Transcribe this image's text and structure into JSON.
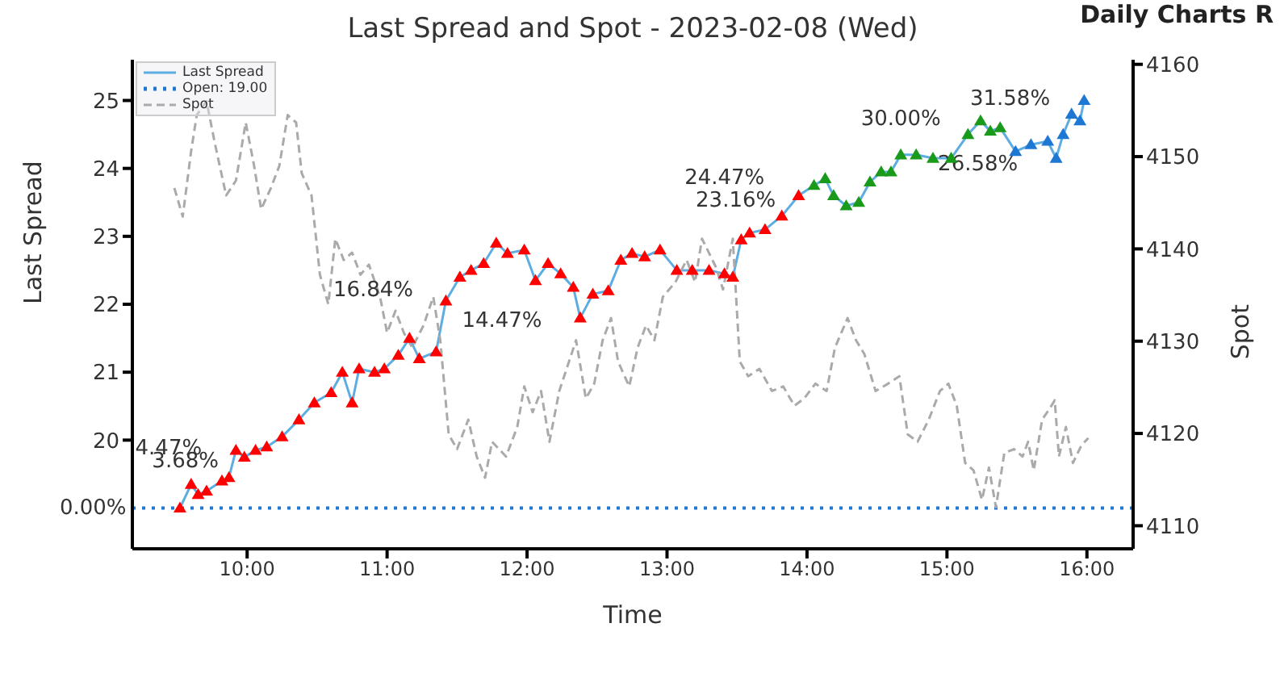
{
  "chart_data": {
    "type": "line",
    "title": "Last Spread and Spot - 2023-02-08 (Wed)",
    "xlabel": "Time",
    "ylabel": "Last Spread",
    "y2label": "Spot",
    "xlim": [
      9.18,
      16.33
    ],
    "xticks": [
      {
        "value": 10,
        "label": "10:00"
      },
      {
        "value": 11,
        "label": "11:00"
      },
      {
        "value": 12,
        "label": "12:00"
      },
      {
        "value": 13,
        "label": "13:00"
      },
      {
        "value": 14,
        "label": "14:00"
      },
      {
        "value": 15,
        "label": "15:00"
      },
      {
        "value": 16,
        "label": "16:00"
      }
    ],
    "ylim": [
      18.4,
      25.6
    ],
    "yticks": [
      20,
      21,
      22,
      23,
      24,
      25
    ],
    "y2lim": [
      4107.5,
      4160.5
    ],
    "y2ticks": [
      4110,
      4120,
      4130,
      4140,
      4150,
      4160
    ],
    "grid": false,
    "legend": "top left",
    "series": [
      {
        "name": "Last Spread",
        "color": "#5dade2",
        "marker": "triangle",
        "line_style": "solid",
        "x": [
          9.52,
          9.6,
          9.65,
          9.71,
          9.82,
          9.87,
          9.92,
          9.98,
          10.06,
          10.14,
          10.25,
          10.37,
          10.48,
          10.6,
          10.68,
          10.75,
          10.8,
          10.91,
          10.98,
          11.08,
          11.16,
          11.23,
          11.35,
          11.42,
          11.52,
          11.6,
          11.69,
          11.78,
          11.86,
          11.98,
          12.06,
          12.15,
          12.24,
          12.33,
          12.38,
          12.47,
          12.58,
          12.67,
          12.75,
          12.84,
          12.95,
          13.07,
          13.18,
          13.3,
          13.41,
          13.47,
          13.53,
          13.59,
          13.7,
          13.82,
          13.94,
          14.05,
          14.13,
          14.19,
          14.28,
          14.37,
          14.45,
          14.53,
          14.6,
          14.67,
          14.78,
          14.9,
          15.03,
          15.15,
          15.24,
          15.31,
          15.38,
          15.49,
          15.6,
          15.72,
          15.78,
          15.83,
          15.89,
          15.95,
          15.98
        ],
        "values": [
          19.0,
          19.35,
          19.2,
          19.25,
          19.4,
          19.45,
          19.85,
          19.75,
          19.85,
          19.9,
          20.05,
          20.3,
          20.55,
          20.7,
          21.0,
          20.55,
          21.05,
          21.0,
          21.05,
          21.25,
          21.5,
          21.2,
          21.3,
          22.05,
          22.4,
          22.5,
          22.6,
          22.9,
          22.75,
          22.8,
          22.35,
          22.6,
          22.45,
          22.25,
          21.8,
          22.15,
          22.2,
          22.65,
          22.75,
          22.7,
          22.8,
          22.5,
          22.5,
          22.5,
          22.45,
          22.4,
          22.95,
          23.05,
          23.1,
          23.3,
          23.6,
          23.75,
          23.85,
          23.6,
          23.45,
          23.5,
          23.8,
          23.95,
          23.95,
          24.2,
          24.2,
          24.15,
          24.15,
          24.5,
          24.7,
          24.55,
          24.6,
          24.25,
          24.35,
          24.4,
          24.15,
          24.5,
          24.8,
          24.7,
          25.0
        ],
        "colors": [
          "#ff0000",
          "#ff0000",
          "#ff0000",
          "#ff0000",
          "#ff0000",
          "#ff0000",
          "#ff0000",
          "#ff0000",
          "#ff0000",
          "#ff0000",
          "#ff0000",
          "#ff0000",
          "#ff0000",
          "#ff0000",
          "#ff0000",
          "#ff0000",
          "#ff0000",
          "#ff0000",
          "#ff0000",
          "#ff0000",
          "#ff0000",
          "#ff0000",
          "#ff0000",
          "#ff0000",
          "#ff0000",
          "#ff0000",
          "#ff0000",
          "#ff0000",
          "#ff0000",
          "#ff0000",
          "#ff0000",
          "#ff0000",
          "#ff0000",
          "#ff0000",
          "#ff0000",
          "#ff0000",
          "#ff0000",
          "#ff0000",
          "#ff0000",
          "#ff0000",
          "#ff0000",
          "#ff0000",
          "#ff0000",
          "#ff0000",
          "#ff0000",
          "#ff0000",
          "#ff0000",
          "#ff0000",
          "#ff0000",
          "#ff0000",
          "#ff0000",
          "#1a9a1a",
          "#1a9a1a",
          "#1a9a1a",
          "#1a9a1a",
          "#1a9a1a",
          "#1a9a1a",
          "#1a9a1a",
          "#1a9a1a",
          "#1a9a1a",
          "#1a9a1a",
          "#1a9a1a",
          "#1a9a1a",
          "#1a9a1a",
          "#1a9a1a",
          "#1a9a1a",
          "#1a9a1a",
          "#1f77d4",
          "#1f77d4",
          "#1f77d4",
          "#1f77d4",
          "#1f77d4",
          "#1f77d4",
          "#1f77d4",
          "#1f77d4"
        ]
      },
      {
        "name": "Spot",
        "axis": "y2",
        "color": "#aaaaaa",
        "marker": "none",
        "line_style": "dashed",
        "x": [
          9.48,
          9.54,
          9.6,
          9.64,
          9.71,
          9.77,
          9.85,
          9.92,
          9.99,
          10.05,
          10.1,
          10.17,
          10.23,
          10.29,
          10.35,
          10.39,
          10.46,
          10.52,
          10.58,
          10.63,
          10.69,
          10.75,
          10.81,
          10.87,
          10.95,
          11.0,
          11.06,
          11.12,
          11.18,
          11.26,
          11.33,
          11.38,
          11.44,
          11.5,
          11.58,
          11.64,
          11.7,
          11.75,
          11.85,
          11.93,
          11.98,
          12.04,
          12.1,
          12.16,
          12.23,
          12.3,
          12.35,
          12.42,
          12.48,
          12.54,
          12.6,
          12.65,
          12.73,
          12.79,
          12.85,
          12.91,
          12.97,
          13.06,
          13.14,
          13.2,
          13.25,
          13.35,
          13.4,
          13.47,
          13.52,
          13.58,
          13.66,
          13.75,
          13.83,
          13.91,
          13.98,
          14.06,
          14.14,
          14.2,
          14.29,
          14.35,
          14.41,
          14.49,
          14.58,
          14.66,
          14.72,
          14.79,
          14.87,
          14.95,
          15.01,
          15.07,
          15.13,
          15.19,
          15.25,
          15.3,
          15.35,
          15.41,
          15.48,
          15.54,
          15.58,
          15.62,
          15.68,
          15.73,
          15.77,
          15.8,
          15.85,
          15.9,
          15.96,
          16.01
        ],
        "values": [
          4146.6,
          4143.5,
          4150.6,
          4154.5,
          4156,
          4151.4,
          4145.8,
          4147.4,
          4153.7,
          4149,
          4144.3,
          4146.6,
          4149,
          4154.5,
          4153.7,
          4148.2,
          4145.8,
          4137.2,
          4134,
          4141.1,
          4138.8,
          4139.6,
          4137.2,
          4138.3,
          4134.8,
          4130.9,
          4133.3,
          4130.9,
          4129.3,
          4131.7,
          4134.8,
          4130.1,
          4119.9,
          4118.3,
          4121.5,
          4117.5,
          4115.2,
          4119.1,
          4117.5,
          4120.7,
          4125.1,
          4122.3,
          4124.6,
          4119.1,
          4124.6,
          4127.8,
          4130.1,
          4123.8,
          4125.4,
          4130.1,
          4132.5,
          4127.8,
          4125.1,
          4129.3,
          4131.7,
          4130.1,
          4134.8,
          4136.4,
          4138.8,
          4136.4,
          4141.1,
          4138,
          4135.6,
          4141.1,
          4127.8,
          4126.2,
          4127,
          4124.6,
          4125.1,
          4123,
          4123.8,
          4125.4,
          4124.6,
          4129.3,
          4132.5,
          4130.1,
          4128.6,
          4124.6,
          4125.4,
          4126.2,
          4119.9,
          4119.1,
          4121.5,
          4124.6,
          4125.4,
          4123,
          4116.8,
          4116,
          4112.8,
          4116.3,
          4112,
          4117.9,
          4118.3,
          4117.5,
          4119.1,
          4116,
          4121.5,
          4122.6,
          4123.6,
          4117.5,
          4120.7,
          4116.8,
          4118.7,
          4119.5
        ]
      }
    ],
    "ref_lines": [
      {
        "axis": "y",
        "value": 19.0,
        "label": "Open: 19.00",
        "color": "#1f77d4",
        "line_style": "dotted"
      }
    ],
    "annotations": [
      "Daily Charts R",
      "0.00%",
      "4.47%",
      "3.68%",
      "16.84%",
      "14.47%",
      "24.47%",
      "23.16%",
      "30.00%",
      "26.58%",
      "31.58%"
    ]
  }
}
